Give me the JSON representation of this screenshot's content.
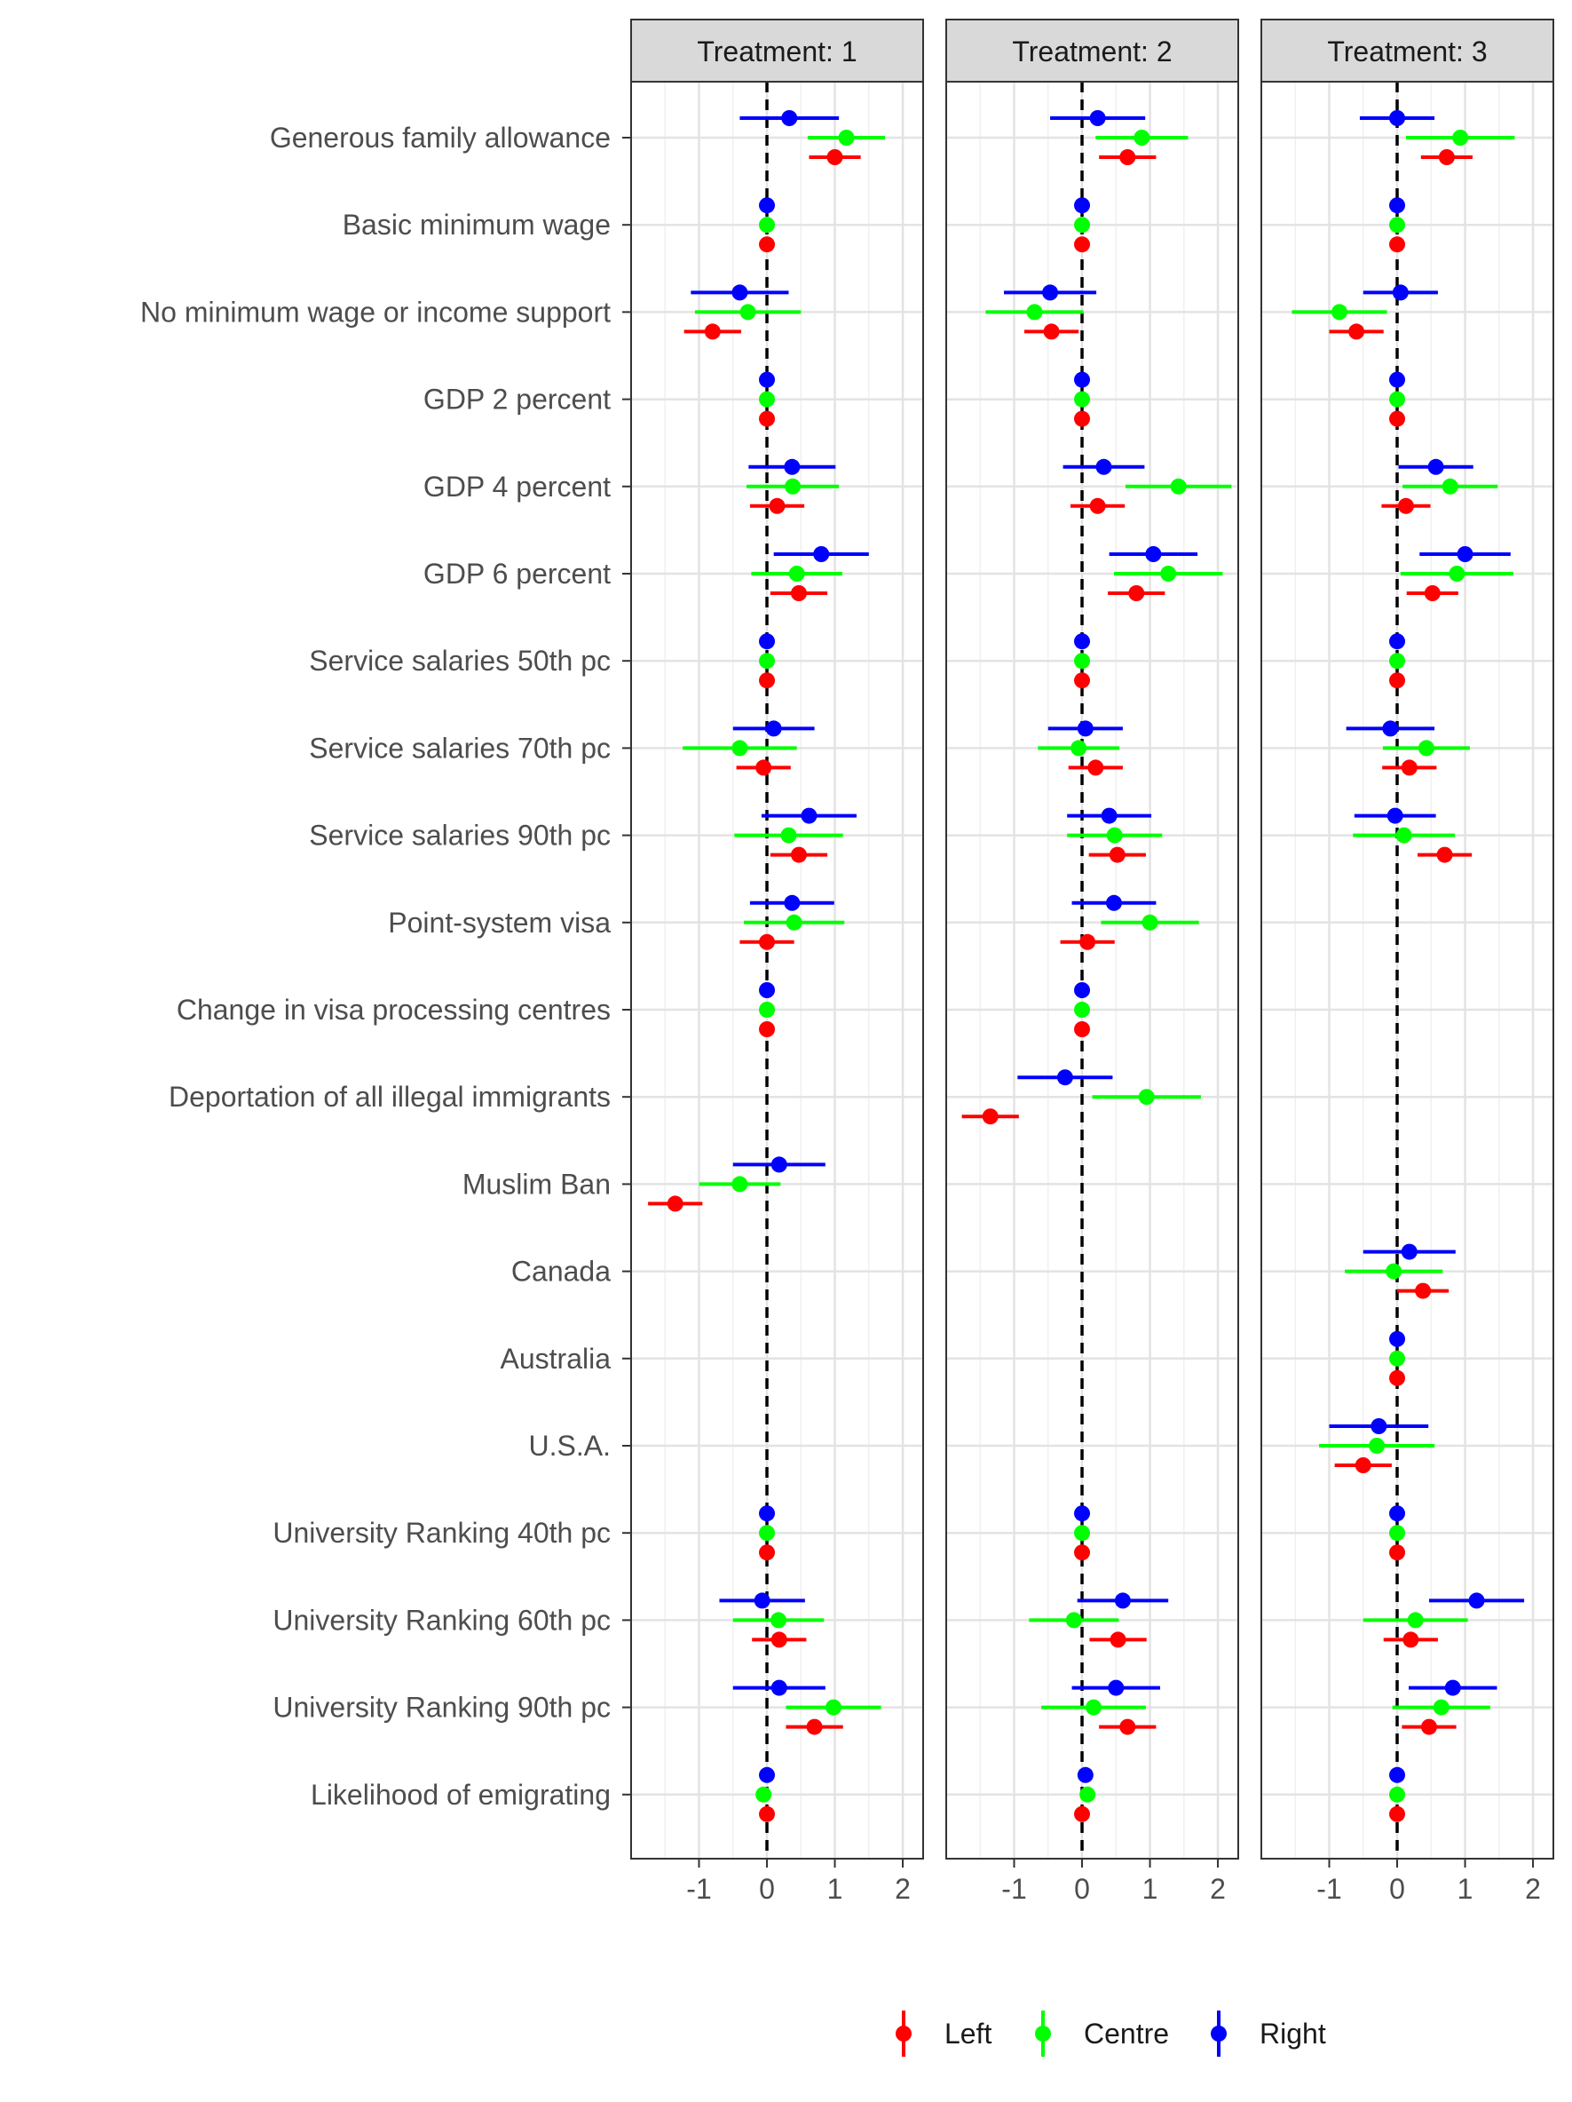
{
  "chart_data": {
    "type": "scatter",
    "subtype": "faceted-coefficient-plot-with-horizontal-error-bars",
    "facets": [
      {
        "strip_label": "Treatment: 1"
      },
      {
        "strip_label": "Treatment: 2"
      },
      {
        "strip_label": "Treatment: 3"
      }
    ],
    "categories": [
      "Generous family allowance",
      "Basic minimum wage",
      "No minimum wage or income support",
      "GDP 2 percent",
      "GDP 4 percent",
      "GDP 6 percent",
      "Service salaries 50th pc",
      "Service salaries 70th pc",
      "Service salaries 90th pc",
      "Point-system visa",
      "Change in visa processing centres",
      "Deportation of all illegal immigrants",
      "Muslim Ban",
      "Canada",
      "Australia",
      "U.S.A.",
      "University Ranking 40th pc",
      "University Ranking 60th pc",
      "University Ranking 90th pc",
      "Likelihood of emigrating"
    ],
    "x_ticks": [
      "-1",
      "0",
      "1",
      "2"
    ],
    "x_tick_values": [
      -1,
      0,
      1,
      2
    ],
    "xlim": [
      -2,
      2.3
    ],
    "reference_line": {
      "x": 0,
      "style": "dashed"
    },
    "grid": true,
    "legend": {
      "placement": "bottom",
      "entries": [
        "Left",
        "Centre",
        "Right"
      ]
    },
    "series": [
      {
        "name": "Left",
        "color": "#ff0000",
        "facets": [
          [
            [
              1.0,
              0.62,
              1.38
            ],
            [
              0,
              0,
              0
            ],
            [
              -0.8,
              -1.22,
              -0.38
            ],
            [
              0,
              0,
              0
            ],
            [
              0.15,
              -0.25,
              0.55
            ],
            [
              0.47,
              0.05,
              0.89
            ],
            [
              0,
              0,
              0
            ],
            [
              -0.05,
              -0.45,
              0.35
            ],
            [
              0.47,
              0.05,
              0.89
            ],
            [
              0,
              -0.4,
              0.4
            ],
            [
              0,
              0,
              0
            ],
            null,
            [
              -1.35,
              -1.75,
              -0.95
            ],
            null,
            null,
            null,
            [
              0,
              0,
              0
            ],
            [
              0.18,
              -0.22,
              0.58
            ],
            [
              0.7,
              0.28,
              1.12
            ],
            [
              0,
              0,
              0
            ]
          ],
          [
            [
              0.67,
              0.25,
              1.09
            ],
            [
              0,
              0,
              0
            ],
            [
              -0.45,
              -0.85,
              -0.05
            ],
            [
              0,
              0,
              0
            ],
            [
              0.23,
              -0.17,
              0.63
            ],
            [
              0.8,
              0.38,
              1.22
            ],
            [
              0,
              0,
              0
            ],
            [
              0.2,
              -0.2,
              0.6
            ],
            [
              0.52,
              0.1,
              0.94
            ],
            [
              0.08,
              -0.32,
              0.48
            ],
            [
              0,
              0,
              0
            ],
            [
              -1.35,
              -1.77,
              -0.93
            ],
            null,
            null,
            null,
            null,
            [
              0,
              0,
              0
            ],
            [
              0.53,
              0.11,
              0.95
            ],
            [
              0.67,
              0.25,
              1.09
            ],
            [
              0,
              0,
              0
            ]
          ],
          [
            [
              0.73,
              0.35,
              1.11
            ],
            [
              0,
              0,
              0
            ],
            [
              -0.6,
              -1.0,
              -0.2
            ],
            [
              0,
              0,
              0
            ],
            [
              0.13,
              -0.23,
              0.49
            ],
            [
              0.52,
              0.14,
              0.9
            ],
            [
              0,
              0,
              0
            ],
            [
              0.18,
              -0.22,
              0.58
            ],
            [
              0.7,
              0.3,
              1.1
            ],
            null,
            null,
            null,
            null,
            [
              0.38,
              0.0,
              0.76
            ],
            [
              0,
              0,
              0
            ],
            [
              -0.5,
              -0.92,
              -0.08
            ],
            [
              0,
              0,
              0
            ],
            [
              0.2,
              -0.2,
              0.6
            ],
            [
              0.47,
              0.07,
              0.87
            ],
            [
              0,
              0,
              0
            ]
          ]
        ]
      },
      {
        "name": "Centre",
        "color": "#00ff00",
        "facets": [
          [
            [
              1.17,
              0.6,
              1.74
            ],
            [
              0,
              0,
              0
            ],
            [
              -0.28,
              -1.06,
              0.5
            ],
            [
              0,
              0,
              0
            ],
            [
              0.38,
              -0.3,
              1.06
            ],
            [
              0.44,
              -0.23,
              1.11
            ],
            [
              0,
              0,
              0
            ],
            [
              -0.4,
              -1.24,
              0.44
            ],
            [
              0.32,
              -0.48,
              1.12
            ],
            [
              0.4,
              -0.34,
              1.14
            ],
            [
              0,
              0,
              0
            ],
            null,
            [
              -0.4,
              -1.0,
              0.2
            ],
            null,
            null,
            null,
            [
              0,
              0,
              0
            ],
            [
              0.17,
              -0.5,
              0.84
            ],
            [
              0.98,
              0.28,
              1.68
            ],
            [
              -0.05,
              -0.05,
              -0.05
            ]
          ],
          [
            [
              0.88,
              0.2,
              1.56
            ],
            [
              0,
              0,
              0
            ],
            [
              -0.7,
              -1.42,
              0.02
            ],
            [
              0,
              0,
              0
            ],
            [
              1.42,
              0.64,
              2.2
            ],
            [
              1.27,
              0.47,
              2.07
            ],
            [
              0,
              0,
              0
            ],
            [
              -0.05,
              -0.65,
              0.55
            ],
            [
              0.48,
              -0.22,
              1.18
            ],
            [
              1.0,
              0.28,
              1.72
            ],
            [
              0,
              0,
              0
            ],
            [
              0.95,
              0.15,
              1.75
            ],
            null,
            null,
            null,
            null,
            [
              0,
              0,
              0
            ],
            [
              -0.12,
              -0.78,
              0.54
            ],
            [
              0.17,
              -0.6,
              0.94
            ],
            [
              0.08,
              0.08,
              0.08
            ]
          ],
          [
            [
              0.93,
              0.13,
              1.73
            ],
            [
              0,
              0,
              0
            ],
            [
              -0.85,
              -1.55,
              -0.15
            ],
            [
              0,
              0,
              0
            ],
            [
              0.78,
              0.08,
              1.48
            ],
            [
              0.88,
              0.05,
              1.71
            ],
            [
              0,
              0,
              0
            ],
            [
              0.43,
              -0.21,
              1.07
            ],
            [
              0.1,
              -0.65,
              0.85
            ],
            null,
            null,
            null,
            null,
            [
              -0.05,
              -0.77,
              0.67
            ],
            [
              0,
              0,
              0
            ],
            [
              -0.3,
              -1.15,
              0.55
            ],
            [
              0,
              0,
              0
            ],
            [
              0.27,
              -0.5,
              1.04
            ],
            [
              0.65,
              -0.07,
              1.37
            ],
            [
              0,
              0,
              0
            ]
          ]
        ]
      },
      {
        "name": "Right",
        "color": "#0000ff",
        "facets": [
          [
            [
              0.33,
              -0.4,
              1.06
            ],
            [
              0,
              0,
              0
            ],
            [
              -0.4,
              -1.12,
              0.32
            ],
            [
              0,
              0,
              0
            ],
            [
              0.37,
              -0.27,
              1.01
            ],
            [
              0.8,
              0.1,
              1.5
            ],
            [
              0,
              0,
              0
            ],
            [
              0.1,
              -0.5,
              0.7
            ],
            [
              0.62,
              -0.08,
              1.32
            ],
            [
              0.37,
              -0.25,
              0.99
            ],
            [
              0,
              0,
              0
            ],
            null,
            [
              0.18,
              -0.5,
              0.86
            ],
            null,
            null,
            null,
            [
              0,
              0,
              0
            ],
            [
              -0.07,
              -0.7,
              0.56
            ],
            [
              0.18,
              -0.5,
              0.86
            ],
            [
              0,
              0,
              0
            ]
          ],
          [
            [
              0.23,
              -0.47,
              0.93
            ],
            [
              0,
              0,
              0
            ],
            [
              -0.47,
              -1.15,
              0.21
            ],
            [
              0,
              0,
              0
            ],
            [
              0.32,
              -0.28,
              0.92
            ],
            [
              1.05,
              0.4,
              1.7
            ],
            [
              0,
              0,
              0
            ],
            [
              0.05,
              -0.5,
              0.6
            ],
            [
              0.4,
              -0.22,
              1.02
            ],
            [
              0.47,
              -0.15,
              1.09
            ],
            [
              0,
              0,
              0
            ],
            [
              -0.25,
              -0.95,
              0.45
            ],
            null,
            null,
            null,
            null,
            [
              0,
              0,
              0
            ],
            [
              0.6,
              -0.07,
              1.27
            ],
            [
              0.5,
              -0.15,
              1.15
            ],
            [
              0.05,
              0.05,
              0.05
            ]
          ],
          [
            [
              0,
              -0.55,
              0.55
            ],
            [
              0,
              0,
              0
            ],
            [
              0.05,
              -0.5,
              0.6
            ],
            [
              0,
              0,
              0
            ],
            [
              0.57,
              0.02,
              1.12
            ],
            [
              1.0,
              0.33,
              1.67
            ],
            [
              0,
              0,
              0
            ],
            [
              -0.1,
              -0.75,
              0.55
            ],
            [
              -0.03,
              -0.63,
              0.57
            ],
            null,
            null,
            null,
            null,
            [
              0.18,
              -0.5,
              0.86
            ],
            [
              0,
              0,
              0
            ],
            [
              -0.27,
              -1.0,
              0.46
            ],
            [
              0,
              0,
              0
            ],
            [
              1.17,
              0.47,
              1.87
            ],
            [
              0.82,
              0.17,
              1.47
            ],
            [
              0,
              0,
              0
            ]
          ]
        ]
      }
    ]
  }
}
